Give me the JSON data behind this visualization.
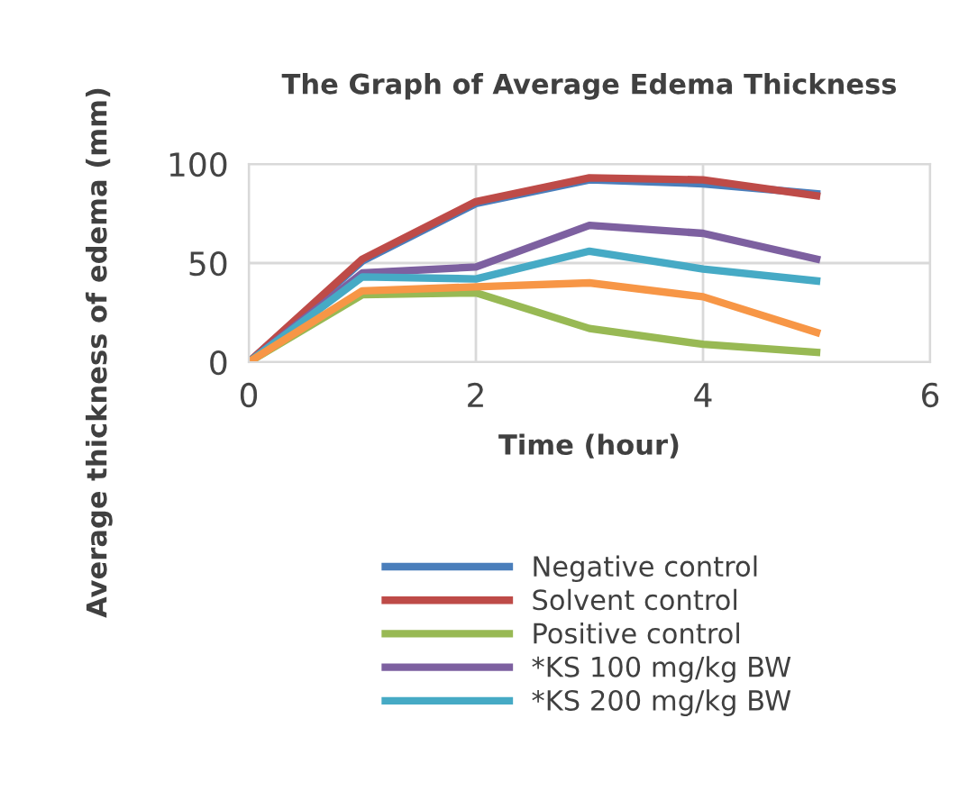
{
  "chart_data": {
    "type": "line",
    "title": "The Graph of Average Edema Thickness",
    "xlabel": "Time (hour)",
    "ylabel": "Average thickness of edema (mm)",
    "x": [
      0,
      1,
      2,
      3,
      4,
      5
    ],
    "xlim": [
      0,
      6
    ],
    "xticks": [
      0,
      2,
      4,
      6
    ],
    "ylim": [
      0,
      100
    ],
    "yticks": [
      0,
      50,
      100
    ],
    "grid": true,
    "legend": "bottom",
    "marker": "none",
    "line_style": "solid",
    "series": [
      {
        "name": "Negative control",
        "color": "#4a7ebb",
        "values": [
          0,
          51,
          80,
          92,
          90,
          85
        ]
      },
      {
        "name": "Solvent control",
        "color": "#be4b48",
        "values": [
          0,
          52,
          81,
          93,
          92,
          84
        ]
      },
      {
        "name": "Positive control",
        "color": "#98b954",
        "values": [
          0,
          34,
          35,
          17,
          9,
          5
        ]
      },
      {
        "name": "*KS 100 mg/kg BW",
        "color": "#7d60a0",
        "values": [
          0,
          45,
          48,
          69,
          65,
          52
        ]
      },
      {
        "name": "*KS 200 mg/kg BW",
        "color": "#46aac5",
        "values": [
          0,
          43,
          42,
          56,
          47,
          41
        ]
      },
      {
        "color": "#f79646",
        "values": [
          0,
          36,
          38,
          40,
          33,
          15
        ]
      }
    ]
  }
}
